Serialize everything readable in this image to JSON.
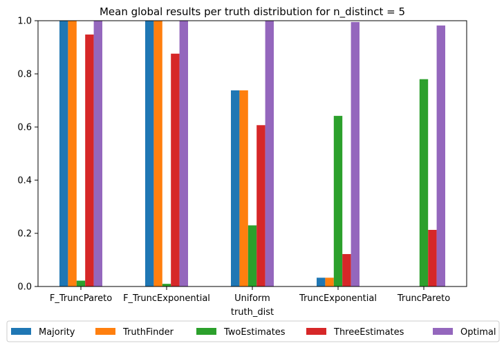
{
  "chart_data": {
    "type": "bar",
    "title": "Mean global results per truth distribution for n_distinct = 5",
    "xlabel": "truth_dist",
    "ylabel": "",
    "ylim": [
      0,
      1.0
    ],
    "y_ticks": [
      "0.0",
      "0.2",
      "0.4",
      "0.6",
      "0.8",
      "1.0"
    ],
    "y_tick_values": [
      0,
      0.2,
      0.4,
      0.6,
      0.8,
      1.0
    ],
    "grid": false,
    "legend_position": "bottom",
    "categories": [
      "F_TruncPareto",
      "F_TruncExponential",
      "Uniform",
      "TruncExponential",
      "TruncPareto"
    ],
    "series": [
      {
        "name": "Majority",
        "color": "#1f77b4",
        "values": [
          1.0,
          1.0,
          0.738,
          0.033,
          0.0
        ]
      },
      {
        "name": "TruthFinder",
        "color": "#ff7f0e",
        "values": [
          1.0,
          1.0,
          0.738,
          0.033,
          0.0
        ]
      },
      {
        "name": "TwoEstimates",
        "color": "#2ca02c",
        "values": [
          0.022,
          0.01,
          0.23,
          0.642,
          0.78
        ]
      },
      {
        "name": "ThreeEstimates",
        "color": "#d62728",
        "values": [
          0.948,
          0.876,
          0.607,
          0.122,
          0.213
        ]
      },
      {
        "name": "Optimal",
        "color": "#9467bd",
        "values": [
          1.0,
          1.0,
          1.0,
          0.995,
          0.982
        ]
      }
    ]
  }
}
